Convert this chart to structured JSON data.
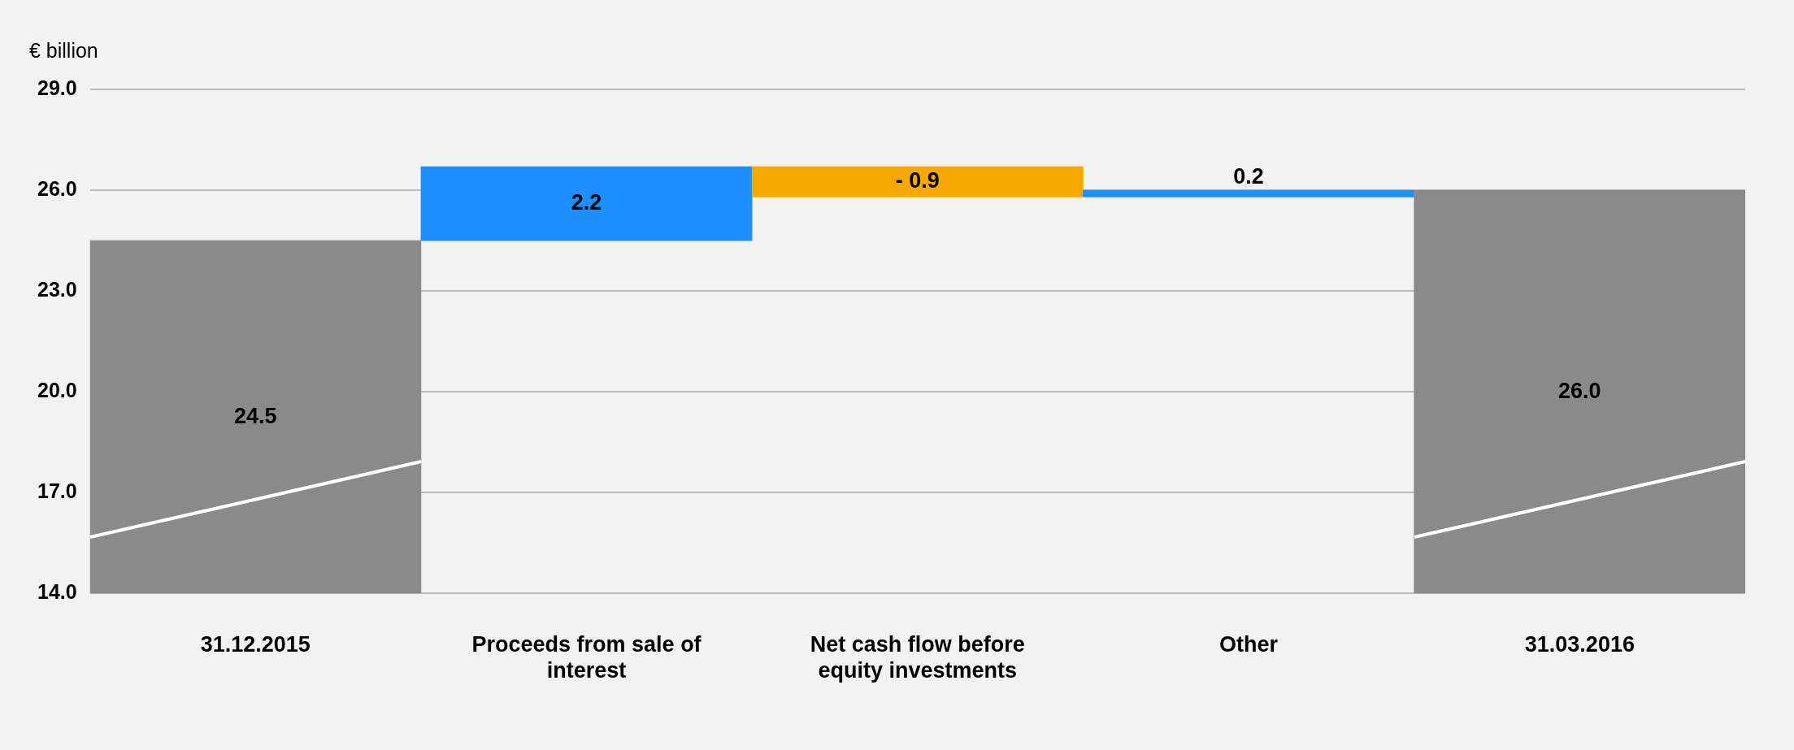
{
  "chart_data": {
    "type": "bar",
    "ylabel": "€ billion",
    "categories": [
      "31.12.2015",
      "Proceeds from sale of interest",
      "Net cash flow before equity investments",
      "Other",
      "31.03.2016"
    ],
    "values": [
      24.5,
      2.2,
      -0.9,
      0.2,
      26.0
    ],
    "base": [
      null,
      24.5,
      26.7,
      25.8,
      null
    ],
    "colors": [
      "#8a8a8a",
      "#1e8fff",
      "#f7a800",
      "#1e8fff",
      "#8a8a8a"
    ],
    "value_labels": [
      "24.5",
      "2.2",
      "- 0.9",
      "0.2",
      "26.0"
    ],
    "ylim": [
      14,
      29
    ],
    "yticks": [
      {
        "value": 14,
        "label": "14.0"
      },
      {
        "value": 17,
        "label": "17.0"
      },
      {
        "value": 20,
        "label": "20.0"
      },
      {
        "value": 23,
        "label": "23.0"
      },
      {
        "value": 26,
        "label": "26.0"
      },
      {
        "value": 29,
        "label": "29.0"
      }
    ],
    "grid": "y",
    "legend": false
  }
}
